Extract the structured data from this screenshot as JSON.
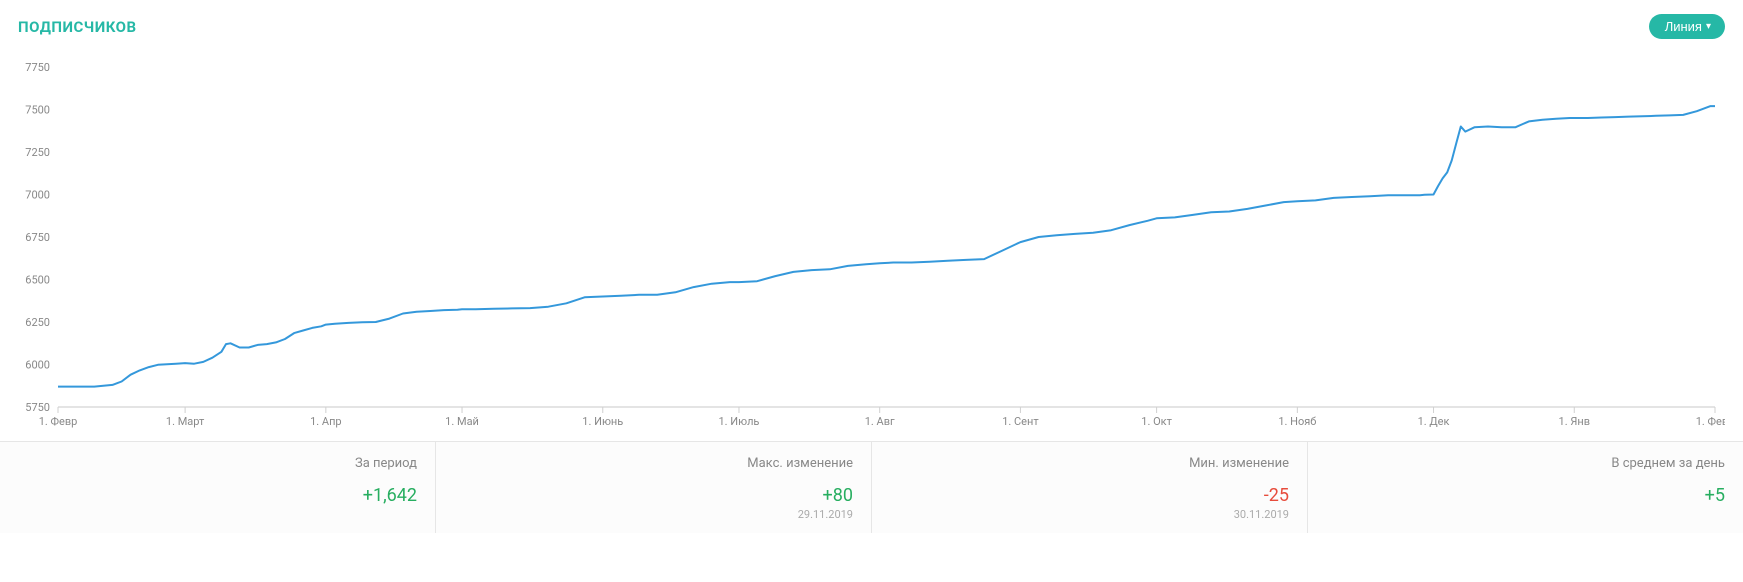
{
  "header": {
    "title": "ПОДПИСЧИКОВ",
    "dropdown_label": "Линия"
  },
  "chart": {
    "type": "line",
    "line_color": "#3498db",
    "line_width": 2,
    "background_color": "#ffffff",
    "grid_color": "#dddddd",
    "axis_color": "#c8c8c8",
    "label_color": "#888888",
    "label_fontsize": 11,
    "ylim": [
      5750,
      7750
    ],
    "ytick_step": 250,
    "y_ticks": [
      5750,
      6000,
      6250,
      6500,
      6750,
      7000,
      7250,
      7500,
      7750
    ],
    "x_categories": [
      "1. Февр",
      "1. Март",
      "1. Апр",
      "1. Май",
      "1. Июнь",
      "1. Июль",
      "1. Авг",
      "1. Сент",
      "1. Окт",
      "1. Нояб",
      "1. Дек",
      "1. Янв",
      "1. Февр"
    ],
    "x_positions": [
      0,
      28,
      59,
      89,
      120,
      150,
      181,
      212,
      242,
      273,
      303,
      334,
      365
    ],
    "series": [
      {
        "name": "subscribers",
        "color": "#3498db",
        "data": [
          [
            0,
            5870
          ],
          [
            3,
            5870
          ],
          [
            6,
            5870
          ],
          [
            8,
            5870
          ],
          [
            10,
            5875
          ],
          [
            12,
            5880
          ],
          [
            14,
            5900
          ],
          [
            16,
            5940
          ],
          [
            18,
            5965
          ],
          [
            20,
            5985
          ],
          [
            22,
            5998
          ],
          [
            24,
            6002
          ],
          [
            26,
            6005
          ],
          [
            28,
            6008
          ],
          [
            30,
            6005
          ],
          [
            32,
            6015
          ],
          [
            34,
            6040
          ],
          [
            36,
            6075
          ],
          [
            37,
            6120
          ],
          [
            38,
            6125
          ],
          [
            40,
            6100
          ],
          [
            42,
            6100
          ],
          [
            44,
            6115
          ],
          [
            46,
            6120
          ],
          [
            48,
            6130
          ],
          [
            50,
            6150
          ],
          [
            52,
            6185
          ],
          [
            54,
            6200
          ],
          [
            56,
            6215
          ],
          [
            58,
            6225
          ],
          [
            59,
            6235
          ],
          [
            61,
            6240
          ],
          [
            64,
            6245
          ],
          [
            67,
            6248
          ],
          [
            70,
            6250
          ],
          [
            73,
            6270
          ],
          [
            76,
            6300
          ],
          [
            79,
            6310
          ],
          [
            82,
            6315
          ],
          [
            85,
            6320
          ],
          [
            88,
            6322
          ],
          [
            89,
            6325
          ],
          [
            92,
            6325
          ],
          [
            96,
            6328
          ],
          [
            100,
            6330
          ],
          [
            104,
            6332
          ],
          [
            108,
            6340
          ],
          [
            112,
            6360
          ],
          [
            116,
            6395
          ],
          [
            120,
            6400
          ],
          [
            124,
            6405
          ],
          [
            128,
            6410
          ],
          [
            132,
            6410
          ],
          [
            136,
            6425
          ],
          [
            140,
            6455
          ],
          [
            144,
            6475
          ],
          [
            148,
            6485
          ],
          [
            150,
            6485
          ],
          [
            154,
            6490
          ],
          [
            158,
            6520
          ],
          [
            162,
            6545
          ],
          [
            166,
            6555
          ],
          [
            170,
            6560
          ],
          [
            174,
            6580
          ],
          [
            178,
            6590
          ],
          [
            181,
            6595
          ],
          [
            184,
            6600
          ],
          [
            188,
            6600
          ],
          [
            192,
            6605
          ],
          [
            196,
            6610
          ],
          [
            200,
            6615
          ],
          [
            204,
            6620
          ],
          [
            208,
            6670
          ],
          [
            212,
            6720
          ],
          [
            216,
            6750
          ],
          [
            220,
            6760
          ],
          [
            224,
            6768
          ],
          [
            228,
            6775
          ],
          [
            232,
            6790
          ],
          [
            236,
            6820
          ],
          [
            240,
            6845
          ],
          [
            242,
            6860
          ],
          [
            246,
            6865
          ],
          [
            250,
            6880
          ],
          [
            254,
            6895
          ],
          [
            258,
            6900
          ],
          [
            262,
            6915
          ],
          [
            266,
            6935
          ],
          [
            270,
            6955
          ],
          [
            273,
            6960
          ],
          [
            277,
            6965
          ],
          [
            281,
            6980
          ],
          [
            285,
            6985
          ],
          [
            289,
            6990
          ],
          [
            293,
            6995
          ],
          [
            297,
            6995
          ],
          [
            300,
            6996
          ],
          [
            301,
            6998
          ],
          [
            303,
            7000
          ],
          [
            304,
            7050
          ],
          [
            305,
            7095
          ],
          [
            306,
            7130
          ],
          [
            307,
            7200
          ],
          [
            308,
            7300
          ],
          [
            309,
            7400
          ],
          [
            310,
            7370
          ],
          [
            312,
            7395
          ],
          [
            315,
            7400
          ],
          [
            318,
            7395
          ],
          [
            321,
            7395
          ],
          [
            324,
            7430
          ],
          [
            327,
            7440
          ],
          [
            330,
            7445
          ],
          [
            333,
            7450
          ],
          [
            334,
            7450
          ],
          [
            337,
            7450
          ],
          [
            340,
            7453
          ],
          [
            343,
            7455
          ],
          [
            346,
            7458
          ],
          [
            349,
            7460
          ],
          [
            352,
            7463
          ],
          [
            355,
            7465
          ],
          [
            358,
            7468
          ],
          [
            361,
            7490
          ],
          [
            364,
            7520
          ],
          [
            365,
            7520
          ]
        ]
      }
    ]
  },
  "stats": [
    {
      "label": "За период",
      "value": "+1,642",
      "sign": "positive",
      "date": ""
    },
    {
      "label": "Макс. изменение",
      "value": "+80",
      "sign": "positive",
      "date": "29.11.2019"
    },
    {
      "label": "Мин. изменение",
      "value": "-25",
      "sign": "negative",
      "date": "30.11.2019"
    },
    {
      "label": "В среднем за день",
      "value": "+5",
      "sign": "positive",
      "date": ""
    }
  ]
}
